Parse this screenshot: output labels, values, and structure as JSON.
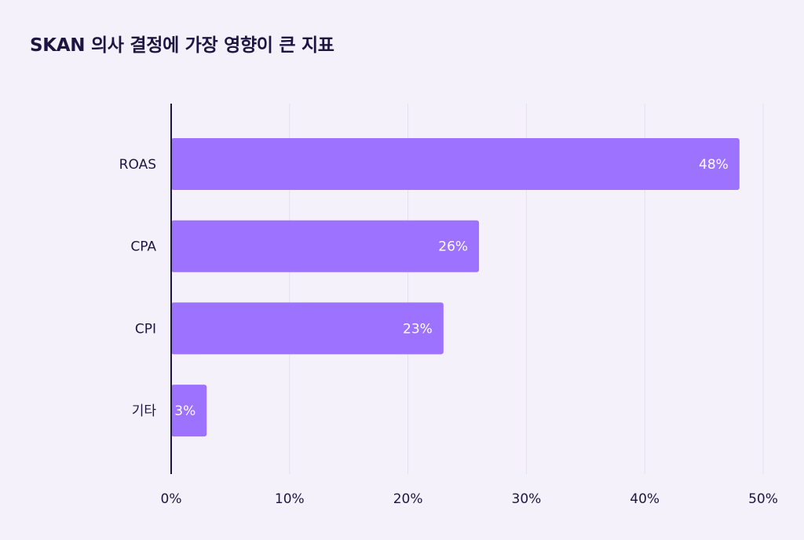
{
  "chart_data": {
    "type": "bar",
    "orientation": "horizontal",
    "title": "SKAN 의사 결정에 가장 영향이 큰 지표",
    "categories": [
      "ROAS",
      "CPA",
      "CPI",
      "기타"
    ],
    "values": [
      48,
      26,
      23,
      3
    ],
    "value_labels": [
      "48%",
      "26%",
      "23%",
      "3%"
    ],
    "xlim": [
      0,
      50
    ],
    "x_ticks": [
      0,
      10,
      20,
      30,
      40,
      50
    ],
    "x_tick_labels": [
      "0%",
      "10%",
      "20%",
      "30%",
      "40%",
      "50%"
    ],
    "grid": true,
    "bar_color": "#9d72ff",
    "text_color": "#1e1640"
  }
}
